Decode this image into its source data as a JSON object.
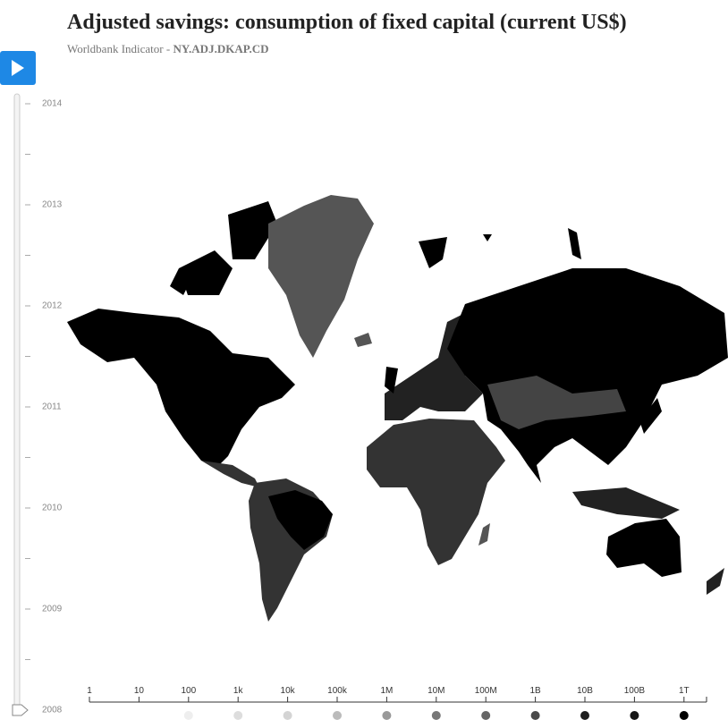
{
  "header": {
    "title": "Adjusted savings: consumption of fixed capital (current US$)",
    "subtitle_prefix": "Worldbank Indicator - ",
    "subtitle_code": "NY.ADJ.DKAP.CD"
  },
  "timeline": {
    "years": [
      "2014",
      "2013",
      "2012",
      "2011",
      "2010",
      "2009",
      "2008"
    ]
  },
  "legend": {
    "labels": [
      "1",
      "10",
      "100",
      "1k",
      "10k",
      "100k",
      "1M",
      "10M",
      "100M",
      "1B",
      "10B",
      "100B",
      "1T"
    ],
    "colors": [
      null,
      null,
      "#eeeeee",
      "#dddddd",
      "#d4d4d4",
      "#bbbbbb",
      "#999999",
      "#777777",
      "#666666",
      "#4a4a4a",
      "#1e1e1e",
      "#171717",
      "#000000"
    ]
  }
}
